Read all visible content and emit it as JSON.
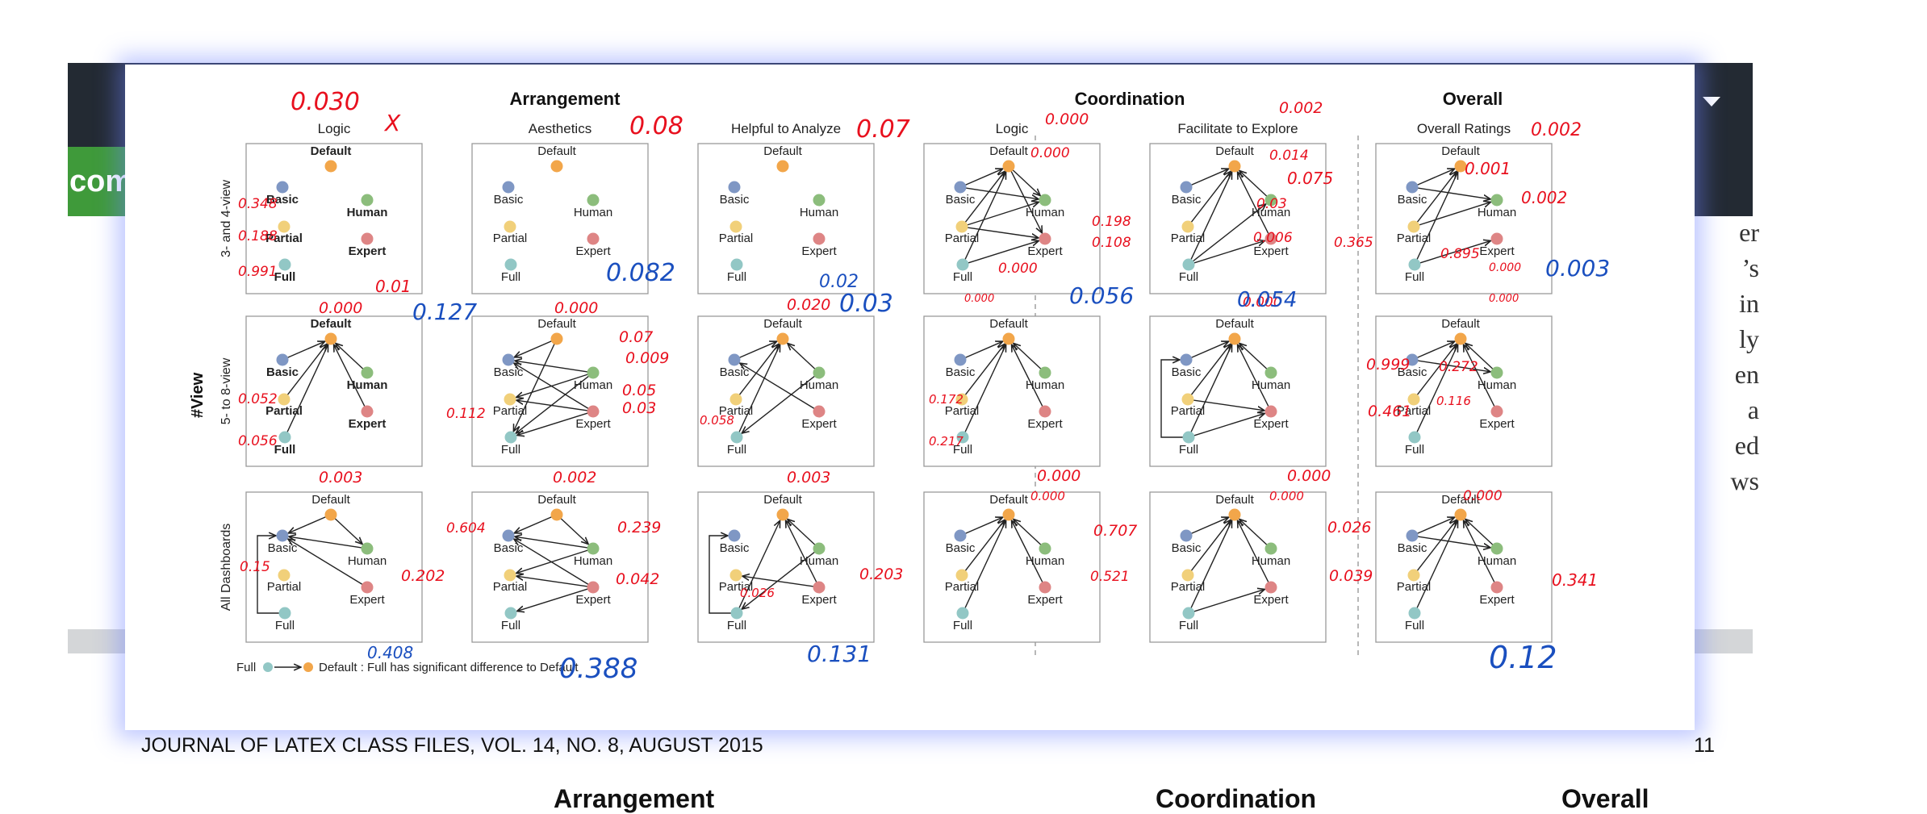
{
  "background": {
    "green_tab_text": "com",
    "side_text": [
      "er",
      "’s",
      "in",
      "ly",
      "en",
      "a",
      "ed",
      "ws"
    ]
  },
  "figure": {
    "group_titles": [
      "Arrangement",
      "Coordination",
      "Overall"
    ],
    "column_titles": [
      "Logic",
      "Aesthetics",
      "Helpful to Analyze",
      "Logic",
      "Facilitate to Explore",
      "Overall Ratings"
    ],
    "row_titles": [
      "3- and 4-view",
      "5- to 8-view",
      "All Dashboards"
    ],
    "axis_title": "#View",
    "node_labels": [
      "Default",
      "Basic",
      "Human",
      "Partial",
      "Expert",
      "Full"
    ],
    "colors": {
      "Default": "#f2a64a",
      "Basic": "#7f97c4",
      "Human": "#8cbd7c",
      "Partial": "#f1d07a",
      "Expert": "#de8585",
      "Full": "#92c7c5"
    },
    "legend": {
      "from": "Full",
      "to": "Default",
      "text": "Default : Full has significant difference to Default"
    }
  },
  "annotations_red": [
    {
      "t": "0.030",
      "p": [
        205,
        56,
        30
      ]
    },
    {
      "t": "X",
      "p": [
        322,
        82,
        28
      ]
    },
    {
      "t": "0.08",
      "p": [
        625,
        86,
        30
      ]
    },
    {
      "t": "0.07",
      "p": [
        906,
        90,
        30
      ]
    },
    {
      "t": "0.000",
      "p": [
        1140,
        74,
        19
      ]
    },
    {
      "t": "0.002",
      "p": [
        1430,
        60,
        19
      ]
    },
    {
      "t": "0.002",
      "p": [
        1742,
        88,
        22
      ]
    },
    {
      "t": "0.000",
      "p": [
        1122,
        115,
        17
      ]
    },
    {
      "t": "0.014",
      "p": [
        1418,
        118,
        17
      ]
    },
    {
      "t": "0.001",
      "p": [
        1660,
        136,
        20
      ]
    },
    {
      "t": "0.075",
      "p": [
        1440,
        148,
        20
      ]
    },
    {
      "t": "0.002",
      "p": [
        1730,
        172,
        20
      ]
    },
    {
      "t": "0.348",
      "p": [
        140,
        178,
        17
      ]
    },
    {
      "t": "0.188",
      "p": [
        140,
        218,
        17
      ]
    },
    {
      "t": "0.198",
      "p": [
        1198,
        200,
        17
      ]
    },
    {
      "t": "0.108",
      "p": [
        1198,
        226,
        17
      ]
    },
    {
      "t": "0.03",
      "p": [
        1402,
        178,
        17
      ]
    },
    {
      "t": "0.006",
      "p": [
        1398,
        220,
        17
      ]
    },
    {
      "t": "0.365",
      "p": [
        1498,
        226,
        17
      ]
    },
    {
      "t": "0.895",
      "p": [
        1630,
        240,
        17
      ]
    },
    {
      "t": "0.000",
      "p": [
        1690,
        256,
        14
      ]
    },
    {
      "t": "0.991",
      "p": [
        140,
        262,
        17
      ]
    },
    {
      "t": "0.01",
      "p": [
        310,
        282,
        20
      ]
    },
    {
      "t": "0.000",
      "p": [
        1082,
        258,
        17
      ]
    },
    {
      "t": "0.000",
      "p": [
        1040,
        294,
        13
      ]
    },
    {
      "t": "0.000",
      "p": [
        1690,
        294,
        13
      ]
    },
    {
      "t": "0.000",
      "p": [
        240,
        308,
        19
      ]
    },
    {
      "t": "0.000",
      "p": [
        532,
        308,
        19
      ]
    },
    {
      "t": "0.020",
      "p": [
        820,
        304,
        19
      ]
    },
    {
      "t": "0.000",
      "p": [
        1385,
        300,
        17
      ]
    },
    {
      "t": "0.07",
      "p": [
        612,
        344,
        19
      ]
    },
    {
      "t": "0.009",
      "p": [
        620,
        370,
        19
      ]
    },
    {
      "t": "0.999",
      "p": [
        1538,
        378,
        19
      ]
    },
    {
      "t": "0.272",
      "p": [
        1628,
        380,
        17
      ]
    },
    {
      "t": "0.05",
      "p": [
        616,
        410,
        19
      ]
    },
    {
      "t": "0.03",
      "p": [
        616,
        432,
        19
      ]
    },
    {
      "t": "0.112",
      "p": [
        398,
        438,
        17
      ]
    },
    {
      "t": "0.052",
      "p": [
        140,
        420,
        17
      ]
    },
    {
      "t": "0.172",
      "p": [
        996,
        420,
        15
      ]
    },
    {
      "t": "0.116",
      "p": [
        1625,
        422,
        15
      ]
    },
    {
      "t": "0.461",
      "p": [
        1540,
        436,
        19
      ]
    },
    {
      "t": "0.058",
      "p": [
        712,
        446,
        15
      ]
    },
    {
      "t": "0.056",
      "p": [
        140,
        472,
        17
      ]
    },
    {
      "t": "0.217",
      "p": [
        996,
        472,
        15
      ]
    },
    {
      "t": "0.003",
      "p": [
        240,
        518,
        19
      ]
    },
    {
      "t": "0.002",
      "p": [
        530,
        518,
        19
      ]
    },
    {
      "t": "0.003",
      "p": [
        820,
        518,
        19
      ]
    },
    {
      "t": "0.000",
      "p": [
        1130,
        516,
        19
      ]
    },
    {
      "t": "0.000",
      "p": [
        1440,
        516,
        19
      ]
    },
    {
      "t": "0.000",
      "p": [
        1122,
        540,
        15
      ]
    },
    {
      "t": "0.000",
      "p": [
        1418,
        540,
        15
      ]
    },
    {
      "t": "0.000",
      "p": [
        1658,
        540,
        17
      ]
    },
    {
      "t": "0.604",
      "p": [
        398,
        580,
        17
      ]
    },
    {
      "t": "0.239",
      "p": [
        610,
        580,
        19
      ]
    },
    {
      "t": "0.707",
      "p": [
        1200,
        584,
        19
      ]
    },
    {
      "t": "0.026",
      "p": [
        1490,
        580,
        19
      ]
    },
    {
      "t": "0.15",
      "p": [
        142,
        628,
        17
      ]
    },
    {
      "t": "0.202",
      "p": [
        342,
        640,
        19
      ]
    },
    {
      "t": "0.042",
      "p": [
        608,
        644,
        19
      ]
    },
    {
      "t": "0.203",
      "p": [
        910,
        638,
        19
      ]
    },
    {
      "t": "0.521",
      "p": [
        1196,
        640,
        17
      ]
    },
    {
      "t": "0.039",
      "p": [
        1492,
        640,
        19
      ]
    },
    {
      "t": "0.341",
      "p": [
        1768,
        646,
        20
      ]
    },
    {
      "t": "0.026",
      "p": [
        762,
        660,
        15
      ]
    }
  ],
  "annotations_blue": [
    {
      "t": "0.127",
      "p": [
        356,
        316,
        28
      ]
    },
    {
      "t": "0.082",
      "p": [
        596,
        268,
        30
      ]
    },
    {
      "t": "0.02",
      "p": [
        860,
        276,
        22
      ]
    },
    {
      "t": "0.03",
      "p": [
        885,
        306,
        30
      ]
    },
    {
      "t": "0.056",
      "p": [
        1170,
        296,
        28
      ]
    },
    {
      "t": "0.054",
      "p": [
        1378,
        300,
        26
      ]
    },
    {
      "t": "0.003",
      "p": [
        1760,
        262,
        28
      ]
    },
    {
      "t": "0.408",
      "p": [
        300,
        736,
        20
      ]
    },
    {
      "t": "0.388",
      "p": [
        538,
        760,
        34
      ]
    },
    {
      "t": "0.131",
      "p": [
        845,
        740,
        28
      ]
    },
    {
      "t": "0.12",
      "p": [
        1690,
        748,
        38
      ]
    }
  ],
  "footer": {
    "left": "JOURNAL OF LATEX CLASS FILES, VOL. 14, NO. 8, AUGUST 2015",
    "right": "11"
  },
  "bottom_row": [
    "Arrangement",
    "Coordination",
    "Overall"
  ]
}
